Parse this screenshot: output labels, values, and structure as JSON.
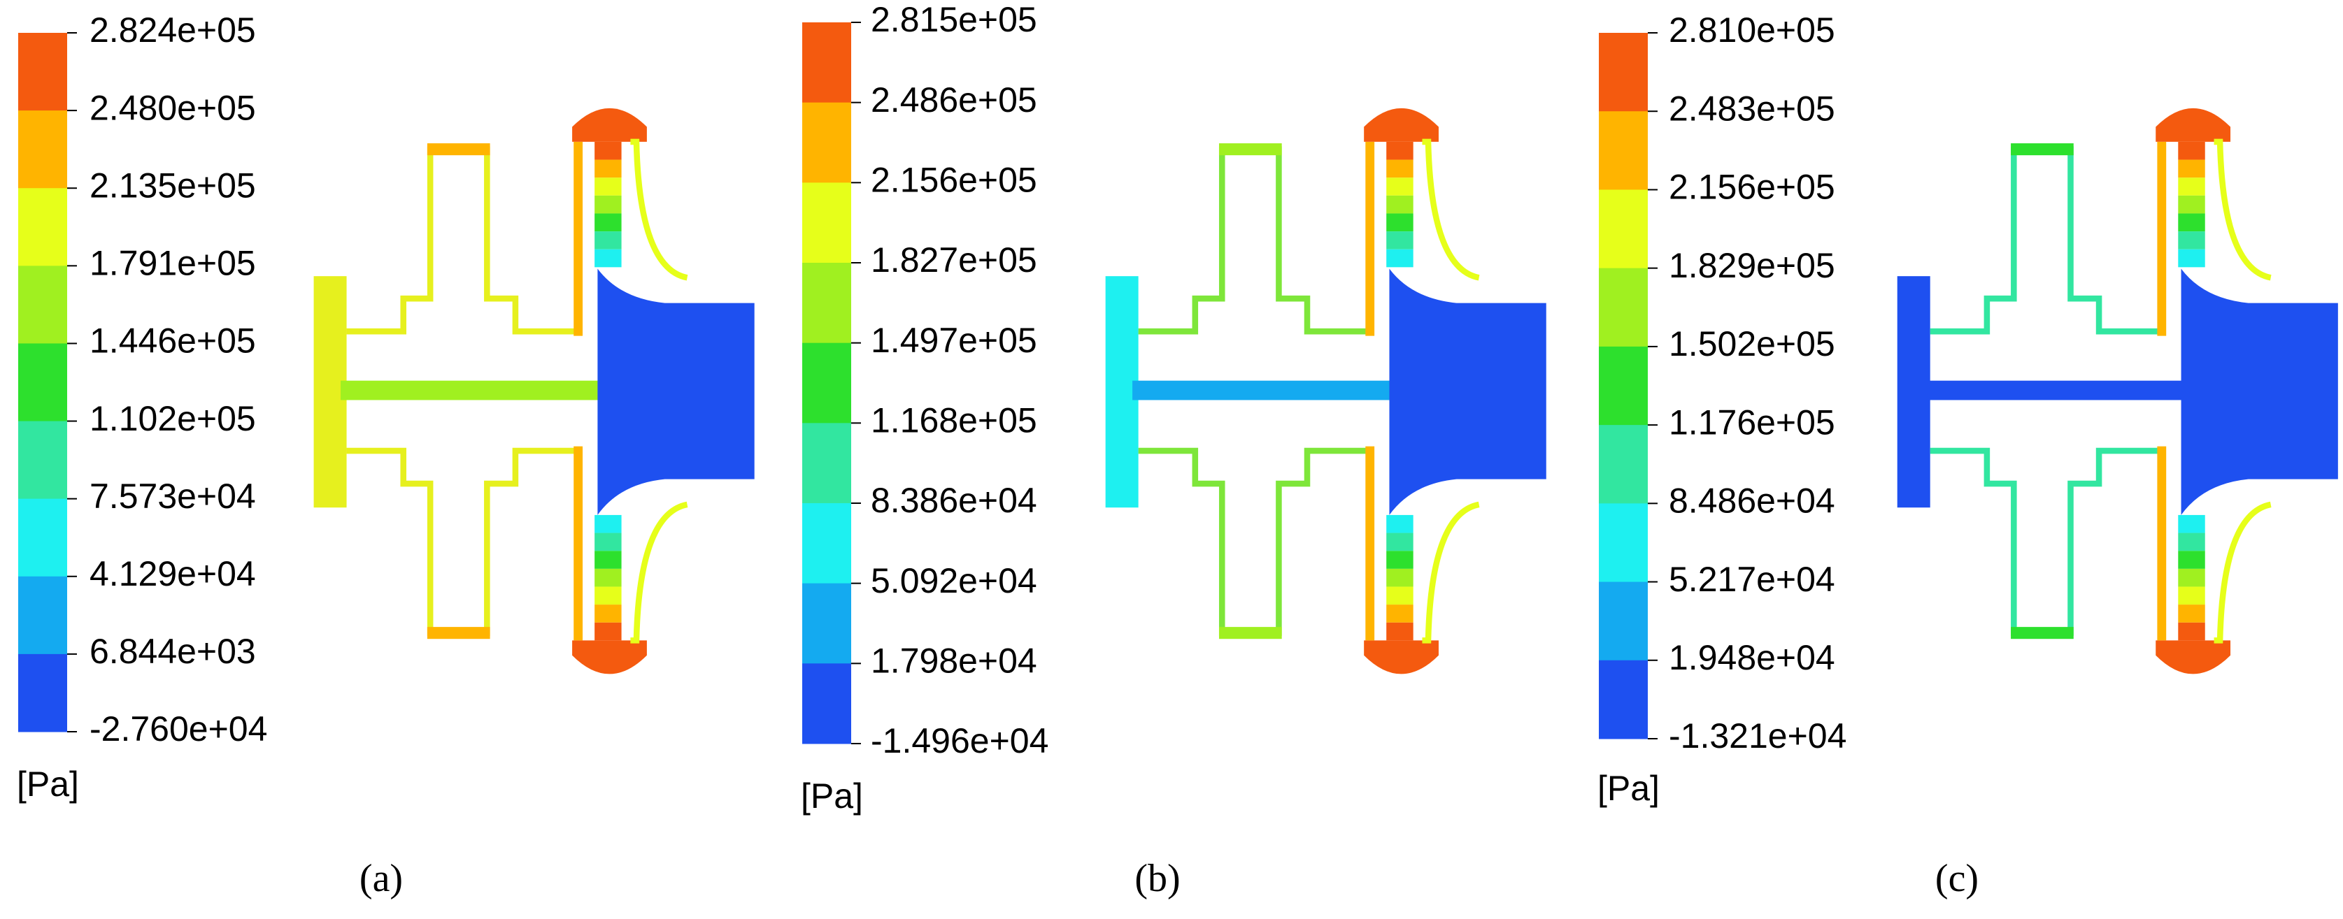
{
  "panels": [
    {
      "legend": {
        "labels": [
          "2.824e+05",
          "2.480e+05",
          "2.135e+05",
          "1.791e+05",
          "1.446e+05",
          "1.102e+05",
          "7.573e+04",
          "4.129e+04",
          "6.844e+03",
          "-2.760e+04"
        ],
        "unit": "[Pa]"
      },
      "caption": "(a)"
    },
    {
      "legend": {
        "labels": [
          "2.815e+05",
          "2.486e+05",
          "2.156e+05",
          "1.827e+05",
          "1.497e+05",
          "1.168e+05",
          "8.386e+04",
          "5.092e+04",
          "1.798e+04",
          "-1.496e+04"
        ],
        "unit": "[Pa]"
      },
      "caption": "(b)"
    },
    {
      "legend": {
        "labels": [
          "2.810e+05",
          "2.483e+05",
          "2.156e+05",
          "1.829e+05",
          "1.502e+05",
          "1.176e+05",
          "8.486e+04",
          "5.217e+04",
          "1.948e+04",
          "-1.321e+04"
        ],
        "unit": "[Pa]"
      },
      "caption": "(c)"
    }
  ]
}
